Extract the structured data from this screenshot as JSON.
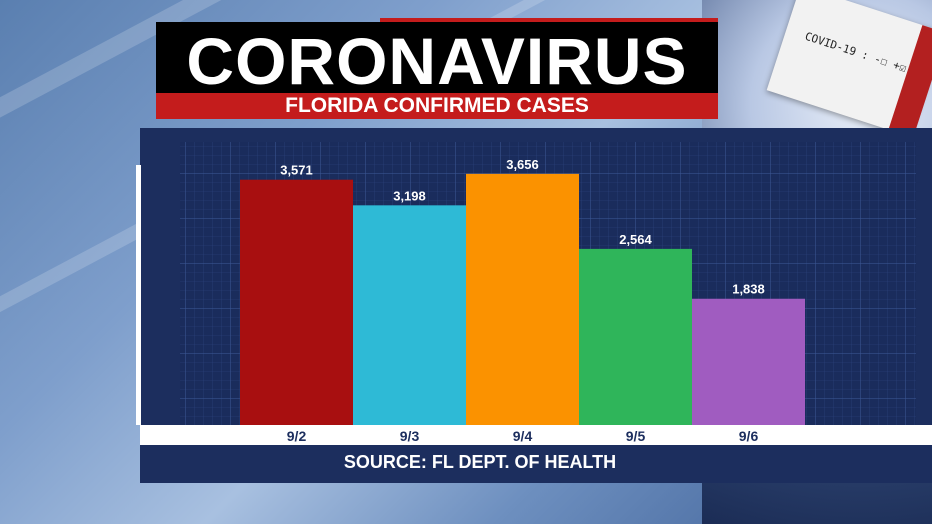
{
  "header": {
    "title": "CORONAVIRUS",
    "subtitle": "FLORIDA CONFIRMED CASES"
  },
  "background": {
    "card_label": "COVID-19 : -☐ +☑"
  },
  "footer": {
    "source": "SOURCE: FL DEPT. OF HEALTH"
  },
  "chart_data": {
    "type": "bar",
    "title": "FLORIDA CONFIRMED CASES",
    "categories": [
      "9/2",
      "9/3",
      "9/4",
      "9/5",
      "9/6"
    ],
    "values": [
      3571,
      3198,
      3656,
      2564,
      1838
    ],
    "value_labels": [
      "3,571",
      "3,198",
      "3,656",
      "2,564",
      "1,838"
    ],
    "colors": [
      "#a80f10",
      "#2ebad6",
      "#fb9200",
      "#2fb55a",
      "#a05cc0"
    ],
    "ylim": [
      0,
      4120
    ],
    "grid": true,
    "legend": "none",
    "xlabel": "",
    "ylabel": ""
  }
}
